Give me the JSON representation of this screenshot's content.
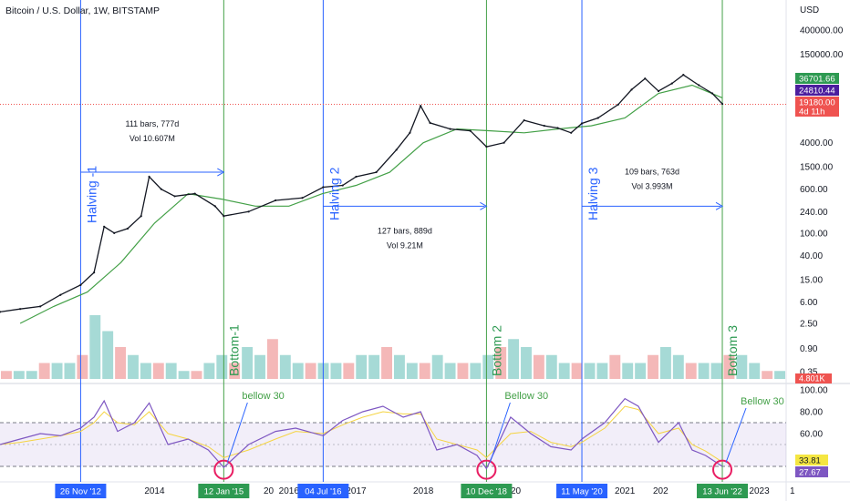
{
  "header": {
    "title": "Bitcoin / U.S. Dollar, 1W, BITSTAMP"
  },
  "price_axis": {
    "currency": "USD",
    "ticks": [
      "400000.00",
      "150000.00",
      "4000.00",
      "1500.00",
      "600.00",
      "240.00",
      "100.00",
      "40.00",
      "15.00",
      "6.00",
      "2.50",
      "0.90",
      "0.35"
    ],
    "tick_values": [
      400000,
      150000,
      4000,
      1500,
      600,
      240,
      100,
      40,
      15,
      6,
      2.5,
      0.9,
      0.35
    ],
    "badges": [
      {
        "text": "36701.66",
        "value": 36701.66,
        "color": "#2e9a52"
      },
      {
        "text": "24810.44",
        "value": 24810.44,
        "color": "#4c1e9e"
      },
      {
        "text": "19180.00",
        "value": 19180,
        "color": "#ef5350"
      },
      {
        "text": "4d 11h",
        "value": 14500,
        "color": "#ef5350"
      }
    ],
    "volume_badge": {
      "text": "4.801K",
      "color": "#ef5350"
    }
  },
  "rsi_axis": {
    "ticks": [
      "100.00",
      "80.00",
      "60.00"
    ],
    "tick_values": [
      100,
      80,
      60
    ],
    "badges": [
      {
        "text": "33.81",
        "value": 33.81,
        "color": "#f5e642",
        "text_color": "#131722"
      },
      {
        "text": "27.67",
        "value": 27.67,
        "color": "#7e57c2",
        "text_color": "#ffffff"
      }
    ],
    "band": [
      30,
      70
    ]
  },
  "time_axis": {
    "labels": [
      {
        "text": "2014",
        "date": 2014.0
      },
      {
        "text": "2016",
        "date": 2016.0
      },
      {
        "text": "2017",
        "date": 2017.0
      },
      {
        "text": "2018",
        "date": 2018.0
      },
      {
        "text": "2021",
        "date": 2021.0
      },
      {
        "text": "2023",
        "date": 2023.0
      }
    ],
    "date_badges": [
      {
        "text": "26 Nov '12",
        "date": 2012.9,
        "color": "#2962ff"
      },
      {
        "text": "12 Jan '15",
        "date": 2015.03,
        "color": "#2e9a52"
      },
      {
        "text": "04 Jul '16",
        "date": 2016.51,
        "color": "#2962ff"
      },
      {
        "text": "10 Dec '18",
        "date": 2018.94,
        "color": "#2e9a52"
      },
      {
        "text": "11 May '20",
        "date": 2020.36,
        "color": "#2962ff"
      },
      {
        "text": "13 Jun '22",
        "date": 2022.45,
        "color": "#2e9a52"
      }
    ],
    "edge_labels": [
      "20",
      "20",
      "202",
      "1"
    ]
  },
  "annotations": {
    "halvings": [
      {
        "label": "Halving -1",
        "date": 2012.9
      },
      {
        "label": "Halving 2",
        "date": 2016.51
      },
      {
        "label": "Halving 3",
        "date": 2020.36
      }
    ],
    "bottoms": [
      {
        "label": "Bottom-1",
        "date": 2015.03
      },
      {
        "label": "Bottom 2",
        "date": 2018.94
      },
      {
        "label": "Bottom 3",
        "date": 2022.45
      }
    ],
    "measures": [
      {
        "line1": "111 bars, 777d",
        "line2": "Vol 10.607M",
        "from": 2012.9,
        "to": 2015.03,
        "price": 1200
      },
      {
        "line1": "127 bars, 889d",
        "line2": "Vol 9.21M",
        "from": 2016.51,
        "to": 2018.94,
        "price": 300
      },
      {
        "line1": "109 bars, 763d",
        "line2": "Vol 3.993M",
        "from": 2020.36,
        "to": 2022.45,
        "price": 300
      }
    ],
    "rsi_notes": [
      {
        "text": "bellow 30",
        "date": 2015.03
      },
      {
        "text": "Bellow 30",
        "date": 2018.94
      },
      {
        "text": "Bellow 30",
        "date": 2022.45
      }
    ]
  },
  "chart_data": {
    "type": "line",
    "title": "Bitcoin / U.S. Dollar, 1W, BITSTAMP",
    "y_scale": "log",
    "ylim": [
      0.3,
      600000
    ],
    "x_range": [
      2011.7,
      2023.4
    ],
    "series": [
      {
        "name": "",
        "color": "#131722",
        "x": [
          2011.7,
          2012.0,
          2012.3,
          2012.6,
          2012.9,
          2013.1,
          2013.25,
          2013.4,
          2013.6,
          2013.8,
          2013.92,
          2014.1,
          2014.3,
          2014.6,
          2014.9,
          2015.03,
          2015.4,
          2015.8,
          2016.2,
          2016.51,
          2016.8,
          2017.0,
          2017.3,
          2017.6,
          2017.8,
          2017.96,
          2018.1,
          2018.4,
          2018.7,
          2018.94,
          2019.2,
          2019.5,
          2019.8,
          2020.0,
          2020.2,
          2020.36,
          2020.6,
          2020.9,
          2021.1,
          2021.3,
          2021.5,
          2021.7,
          2021.87,
          2022.1,
          2022.3,
          2022.45
        ],
        "values": [
          4,
          4.5,
          5,
          8,
          12,
          20,
          130,
          100,
          120,
          200,
          1000,
          600,
          450,
          500,
          300,
          200,
          240,
          380,
          420,
          650,
          700,
          1000,
          1200,
          3000,
          6000,
          18000,
          9000,
          7000,
          6500,
          3400,
          4000,
          10000,
          8000,
          7300,
          6000,
          8800,
          11000,
          19000,
          35000,
          55000,
          33000,
          45000,
          64000,
          42000,
          30000,
          19500
        ]
      },
      {
        "name": "",
        "color": "#43a047",
        "x": [
          2012.0,
          2012.5,
          2013.0,
          2013.5,
          2014.0,
          2014.5,
          2015.0,
          2015.5,
          2016.0,
          2016.5,
          2017.0,
          2017.5,
          2018.0,
          2018.5,
          2019.0,
          2019.5,
          2020.0,
          2020.5,
          2021.0,
          2021.5,
          2022.0,
          2022.45
        ],
        "values": [
          2.5,
          5,
          9,
          30,
          150,
          500,
          400,
          300,
          300,
          500,
          700,
          1200,
          4000,
          7000,
          6500,
          6000,
          7000,
          8000,
          11000,
          30000,
          42000,
          25000
        ]
      }
    ],
    "volume": [
      1,
      1,
      1,
      2,
      2,
      2,
      3,
      8,
      6,
      4,
      3,
      2,
      2,
      2,
      1,
      1,
      2,
      3,
      2,
      4,
      3,
      5,
      3,
      2,
      2,
      2,
      2,
      2,
      3,
      3,
      4,
      3,
      2,
      2,
      3,
      2,
      2,
      2,
      3,
      4,
      5,
      4,
      3,
      3,
      2,
      2,
      2,
      2,
      3,
      2,
      2,
      3,
      4,
      3,
      2,
      2,
      2,
      3,
      3,
      2,
      1,
      1
    ],
    "rsi": {
      "name": "",
      "ylim": [
        20,
        100
      ],
      "x": [
        2011.7,
        2012.0,
        2012.3,
        2012.6,
        2012.9,
        2013.1,
        2013.25,
        2013.45,
        2013.7,
        2013.92,
        2014.2,
        2014.5,
        2014.8,
        2015.03,
        2015.4,
        2015.8,
        2016.1,
        2016.51,
        2016.8,
        2017.1,
        2017.4,
        2017.7,
        2017.96,
        2018.2,
        2018.5,
        2018.8,
        2018.94,
        2019.3,
        2019.6,
        2019.9,
        2020.2,
        2020.36,
        2020.7,
        2021.0,
        2021.2,
        2021.5,
        2021.8,
        2022.0,
        2022.2,
        2022.45
      ],
      "values": [
        50,
        55,
        60,
        58,
        65,
        75,
        90,
        62,
        70,
        88,
        50,
        55,
        45,
        29,
        50,
        62,
        65,
        58,
        72,
        80,
        85,
        75,
        80,
        45,
        50,
        40,
        28,
        75,
        60,
        48,
        45,
        55,
        70,
        92,
        85,
        52,
        70,
        45,
        40,
        30
      ],
      "signal_values": [
        50,
        52,
        55,
        58,
        62,
        70,
        80,
        70,
        68,
        80,
        60,
        55,
        48,
        38,
        45,
        55,
        62,
        60,
        68,
        75,
        80,
        78,
        78,
        55,
        50,
        45,
        38,
        60,
        62,
        52,
        48,
        52,
        65,
        85,
        82,
        60,
        65,
        50,
        44,
        34
      ]
    }
  }
}
